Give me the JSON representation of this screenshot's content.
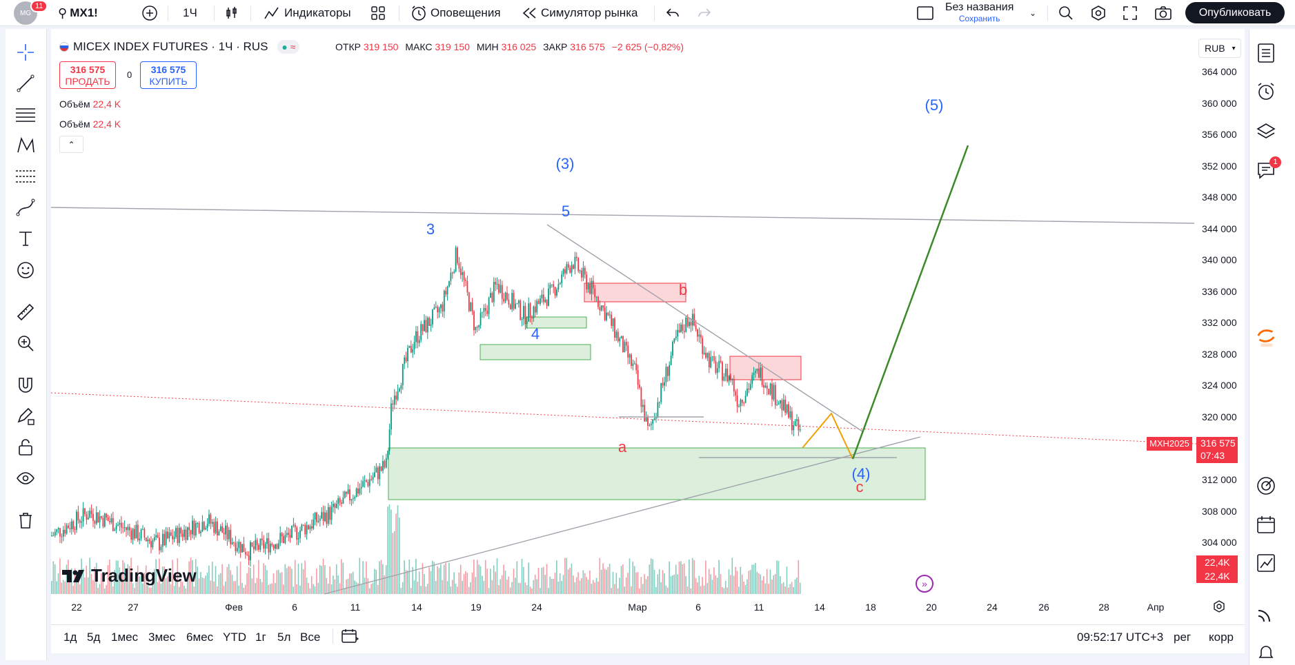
{
  "topbar": {
    "notification_count": "11",
    "avatar_text": "MG",
    "symbol": "MX1!",
    "interval": "1Ч",
    "indicators_label": "Индикаторы",
    "alerts_label": "Оповещения",
    "replay_label": "Симулятор рынка",
    "layout_name": "Без названия",
    "layout_save": "Сохранить",
    "publish_label": "Опубликовать"
  },
  "legend": {
    "title": "MICEX INDEX FUTURES · 1Ч · RUS",
    "open_label": "ОТКР",
    "open_value": "319 150",
    "high_label": "МАКС",
    "high_value": "319 150",
    "low_label": "МИН",
    "low_value": "316 025",
    "close_label": "ЗАКР",
    "close_value": "316 575",
    "change_value": "−2 625 (−0,82%)",
    "sell_price": "316 575",
    "sell_label": "ПРОДАТЬ",
    "spread": "0",
    "buy_price": "316 575",
    "buy_label": "КУПИТЬ",
    "volume_rows": [
      {
        "label": "Объём",
        "value": "22,4 K"
      },
      {
        "label": "Объём",
        "value": "22,4 K"
      }
    ],
    "currency": "RUB"
  },
  "price_axis": [
    "364 000",
    "360 000",
    "356 000",
    "352 000",
    "348 000",
    "344 000",
    "340 000",
    "336 000",
    "332 000",
    "328 000",
    "324 000",
    "320 000",
    "312 000",
    "308 000",
    "304 000"
  ],
  "time_axis": [
    "22",
    "27",
    "Фев",
    "6",
    "11",
    "14",
    "19",
    "24",
    "Мар",
    "6",
    "11",
    "14",
    "18",
    "20",
    "24",
    "26",
    "28",
    "Апр"
  ],
  "price_tag": {
    "symbol": "MXH2025",
    "price": "316 575",
    "countdown": "07:43"
  },
  "volume_tags": [
    "22,4K",
    "22,4K"
  ],
  "wave_labels": {
    "w3": "3",
    "w5": "5",
    "w4": "4",
    "wp3": "(3)",
    "wp5": "(5)",
    "wp4": "(4)",
    "a": "a",
    "b": "b",
    "c": "c"
  },
  "brand": "TradingView",
  "bottombar": {
    "ranges": [
      "1д",
      "5д",
      "1мес",
      "3мес",
      "6мес",
      "YTD",
      "1г",
      "5л",
      "Все"
    ],
    "clock": "09:52:17 UTC+3",
    "session": "рег",
    "adjust": "корр"
  },
  "badges": {
    "chat": "1"
  },
  "colors": {
    "red": "#f23645",
    "blue": "#2962ff",
    "green_zone": "#d6eed9",
    "pink_zone": "#f9d3d6",
    "target_line": "#3a8a2a",
    "path_orange": "#f0a000"
  }
}
